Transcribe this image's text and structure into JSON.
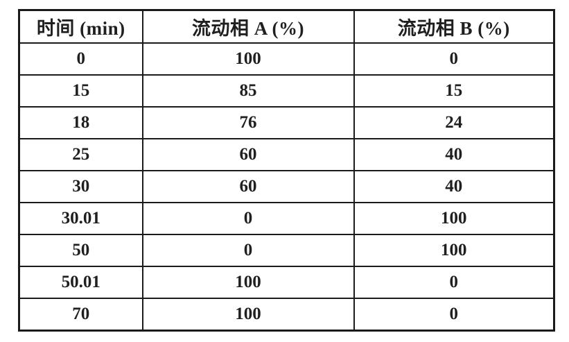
{
  "table": {
    "headers": {
      "time": "时间 (min)",
      "mobile_phase_a": "流动相 A (%)",
      "mobile_phase_b": "流动相 B (%)"
    },
    "rows": [
      [
        "0",
        "100",
        "0"
      ],
      [
        "15",
        "85",
        "15"
      ],
      [
        "18",
        "76",
        "24"
      ],
      [
        "25",
        "60",
        "40"
      ],
      [
        "30",
        "60",
        "40"
      ],
      [
        "30.01",
        "0",
        "100"
      ],
      [
        "50",
        "0",
        "100"
      ],
      [
        "50.01",
        "100",
        "0"
      ],
      [
        "70",
        "100",
        "0"
      ]
    ]
  },
  "colors": {
    "border": "#1a1a1a",
    "background": "#ffffff",
    "text": "#1f1f1f"
  }
}
